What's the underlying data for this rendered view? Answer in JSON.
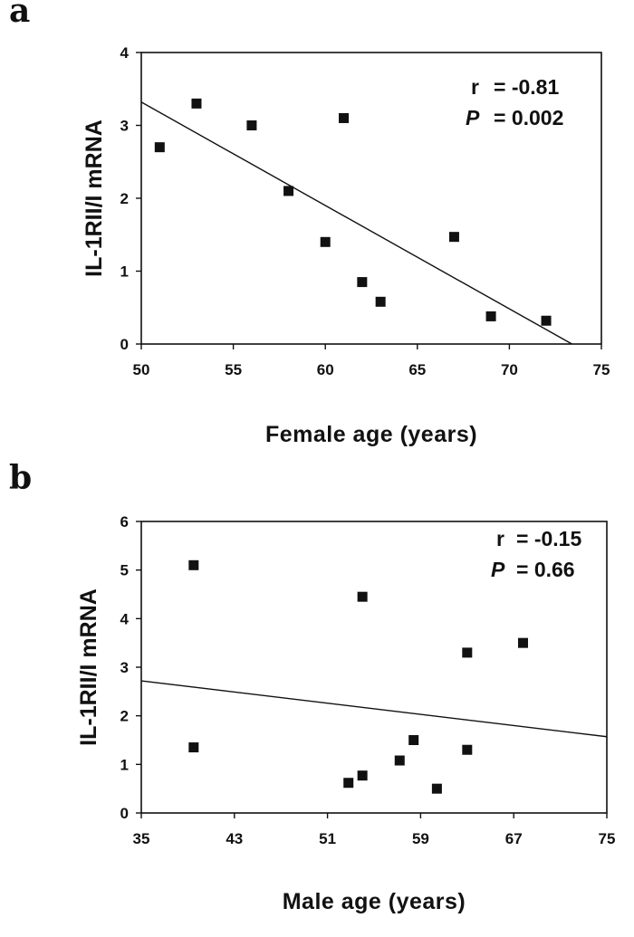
{
  "chart_data": [
    {
      "panel": "a",
      "type": "scatter",
      "xlabel": "Female age (years)",
      "ylabel": "IL-1RII/I mRNA",
      "xlim": [
        50,
        75
      ],
      "ylim": [
        0,
        4
      ],
      "xticks": [
        50,
        55,
        60,
        65,
        70,
        75
      ],
      "yticks": [
        0,
        1,
        2,
        3,
        4
      ],
      "grid": false,
      "points": [
        {
          "x": 51,
          "y": 2.7
        },
        {
          "x": 53,
          "y": 3.3
        },
        {
          "x": 56,
          "y": 3.0
        },
        {
          "x": 58,
          "y": 2.1
        },
        {
          "x": 60,
          "y": 1.4
        },
        {
          "x": 61,
          "y": 3.1
        },
        {
          "x": 62,
          "y": 0.85
        },
        {
          "x": 63,
          "y": 0.58
        },
        {
          "x": 67,
          "y": 1.47
        },
        {
          "x": 69,
          "y": 0.38
        },
        {
          "x": 72,
          "y": 0.32
        }
      ],
      "fit_line": {
        "x": [
          50,
          73.4
        ],
        "y": [
          3.32,
          0
        ]
      },
      "stats": {
        "r_label": "r",
        "r_value": "= -0.81",
        "p_label": "P",
        "p_value": "= 0.002"
      }
    },
    {
      "panel": "b",
      "type": "scatter",
      "xlabel": "Male age (years)",
      "ylabel": "IL-1RII/I mRNA",
      "xlim": [
        35,
        75
      ],
      "ylim": [
        0,
        6
      ],
      "xticks": [
        35,
        43,
        51,
        59,
        67,
        75
      ],
      "yticks": [
        0,
        1,
        2,
        3,
        4,
        5,
        6
      ],
      "grid": false,
      "points": [
        {
          "x": 39.5,
          "y": 5.1
        },
        {
          "x": 39.5,
          "y": 1.35
        },
        {
          "x": 52.8,
          "y": 0.62
        },
        {
          "x": 54.0,
          "y": 4.45
        },
        {
          "x": 54.0,
          "y": 0.77
        },
        {
          "x": 57.2,
          "y": 1.08
        },
        {
          "x": 58.4,
          "y": 1.5
        },
        {
          "x": 60.4,
          "y": 0.5
        },
        {
          "x": 63.0,
          "y": 3.3
        },
        {
          "x": 63.0,
          "y": 1.3
        },
        {
          "x": 67.8,
          "y": 3.5
        }
      ],
      "fit_line": {
        "x": [
          35,
          75
        ],
        "y": [
          2.72,
          1.57
        ]
      },
      "stats": {
        "r_label": "r",
        "r_value": "= -0.15",
        "p_label": "P",
        "p_value": "= 0.66"
      }
    }
  ]
}
